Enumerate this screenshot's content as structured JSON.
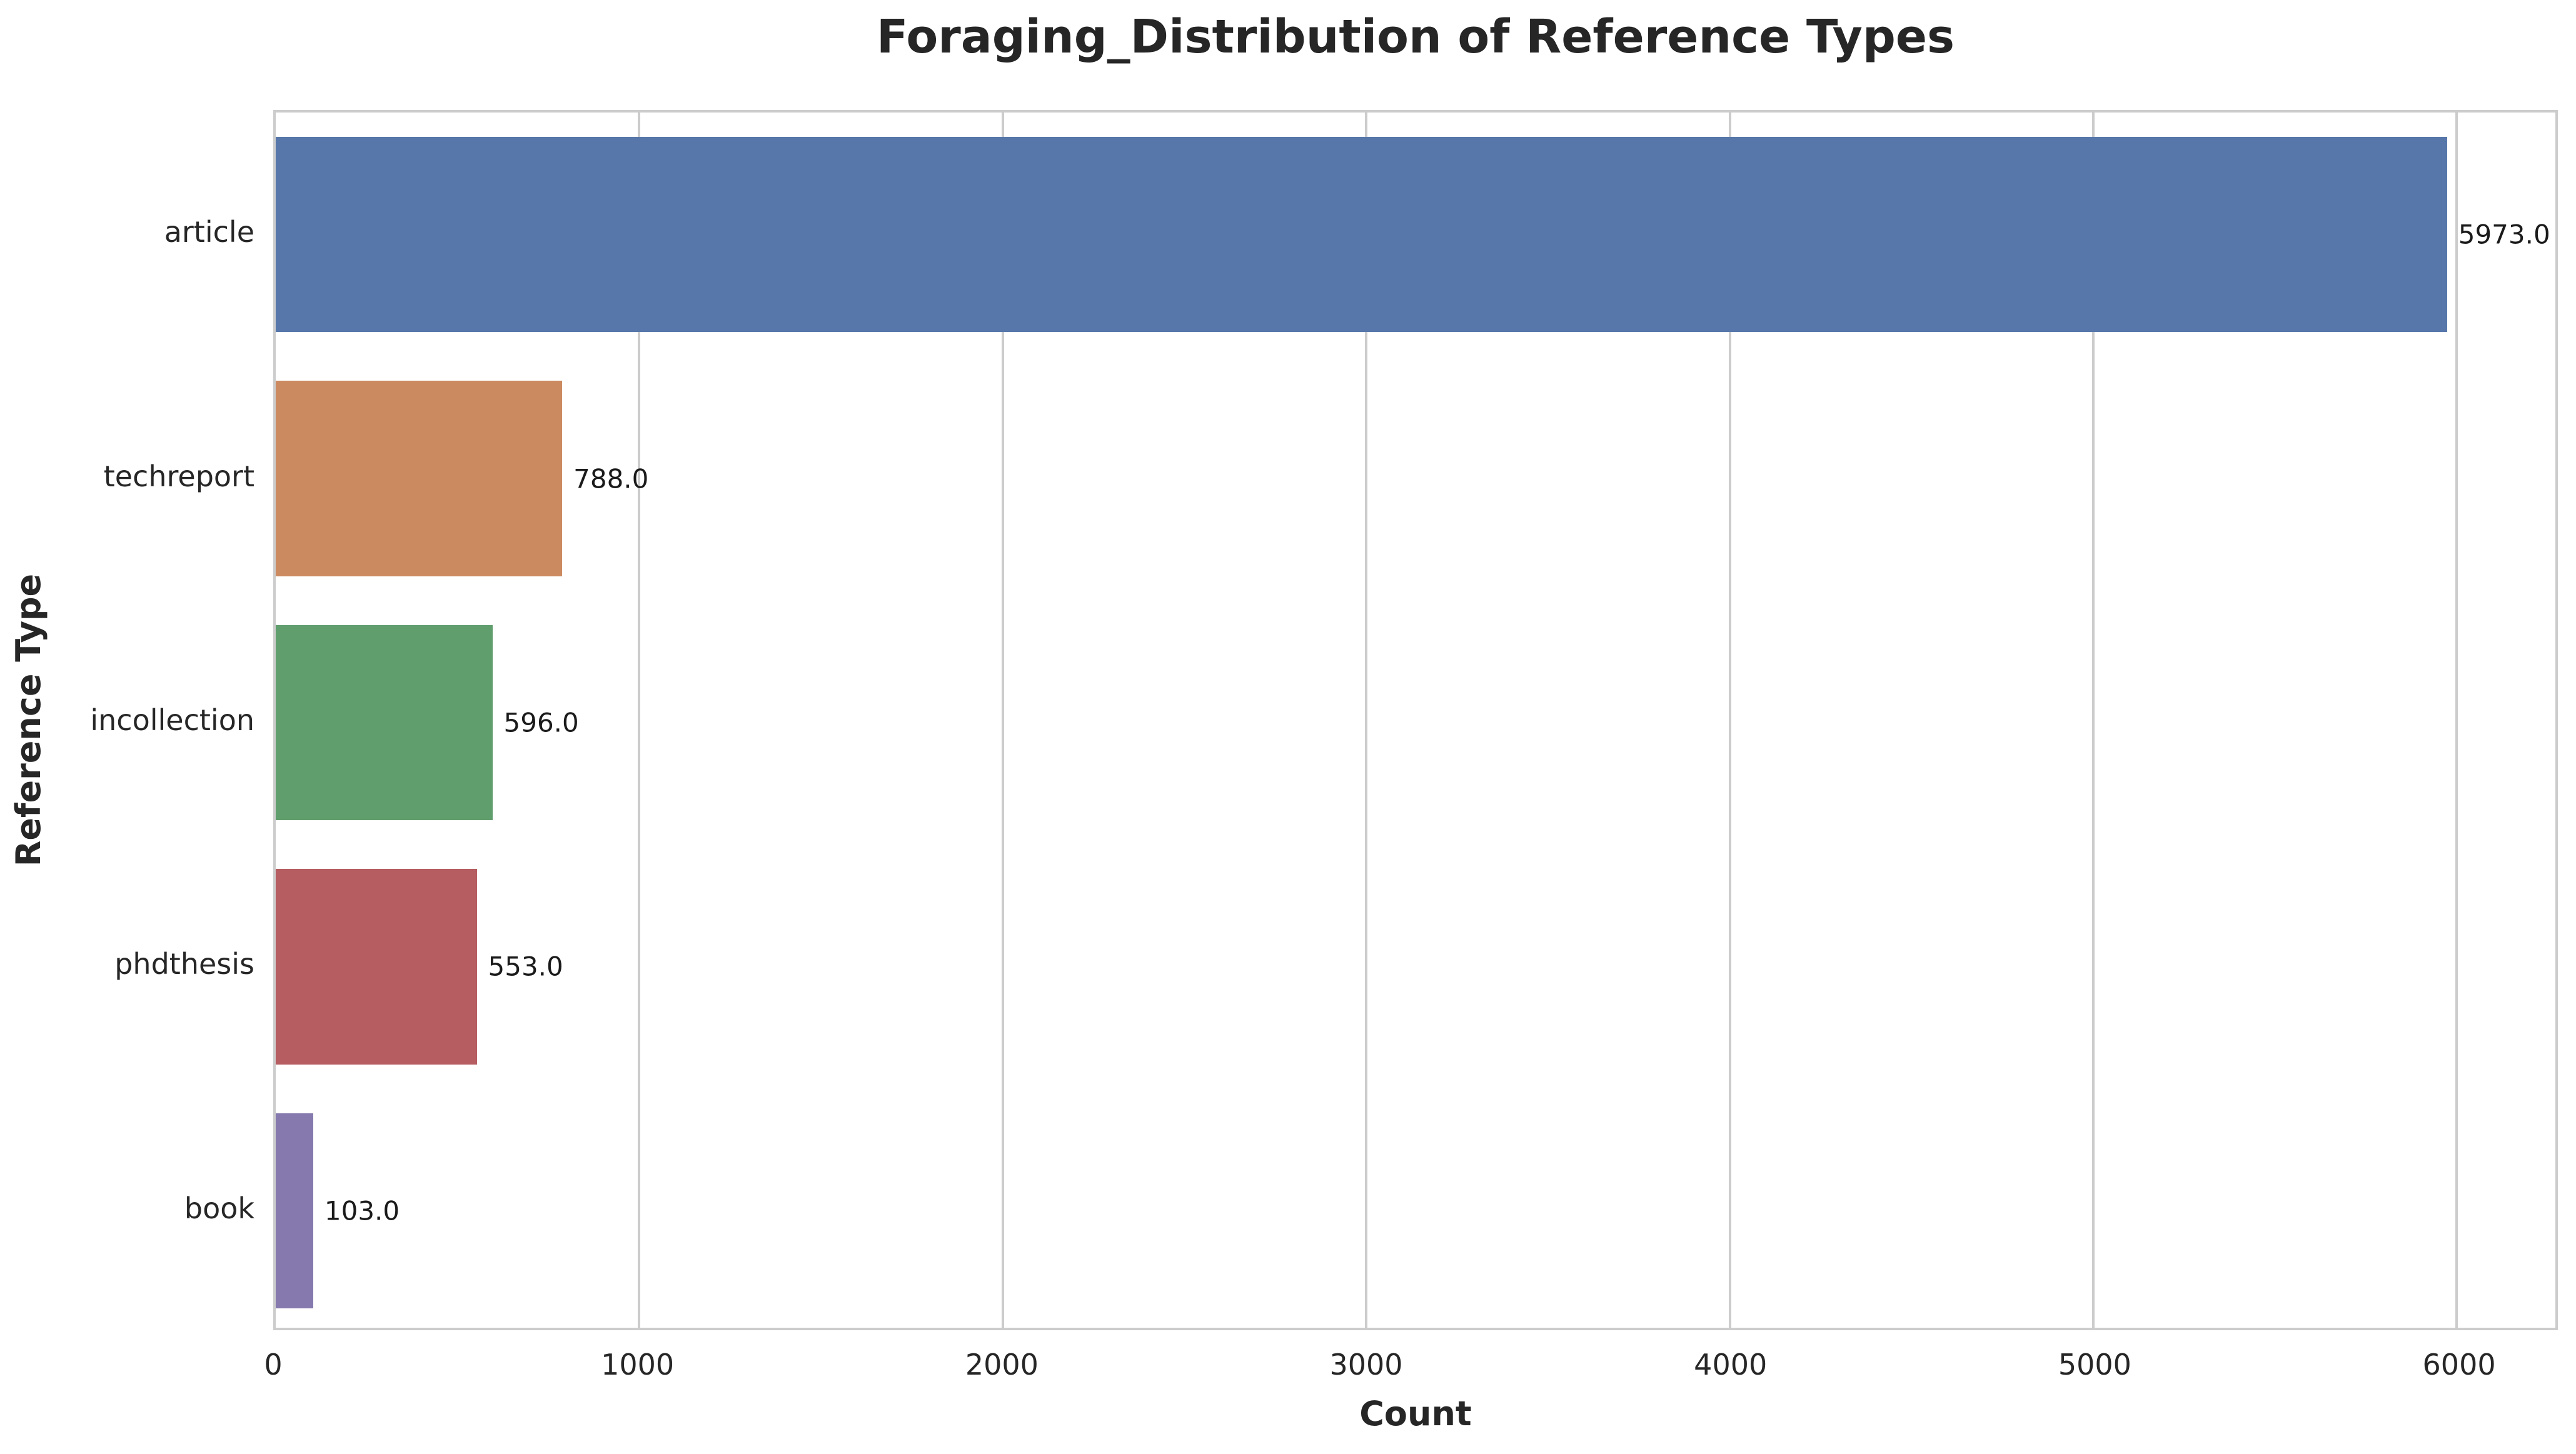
{
  "chart_data": {
    "type": "bar",
    "orientation": "horizontal",
    "title": "Foraging_Distribution of Reference Types",
    "xlabel": "Count",
    "ylabel": "Reference Type",
    "categories": [
      "article",
      "techreport",
      "incollection",
      "phdthesis",
      "book"
    ],
    "values": [
      5973.0,
      788.0,
      596.0,
      553.0,
      103.0
    ],
    "value_labels": [
      "5973.0",
      "788.0",
      "596.0",
      "553.0",
      "103.0"
    ],
    "bar_colors": [
      "#5777ab",
      "#cc8a61",
      "#609e6e",
      "#b55d60",
      "#8679ae"
    ],
    "x_ticks": [
      0,
      1000,
      2000,
      3000,
      4000,
      5000,
      6000
    ],
    "xlim": [
      0,
      6271
    ],
    "grid": true,
    "grid_color": "#cccccc",
    "legend": null,
    "background_color": "#ffffff",
    "text_color": "#262626"
  }
}
